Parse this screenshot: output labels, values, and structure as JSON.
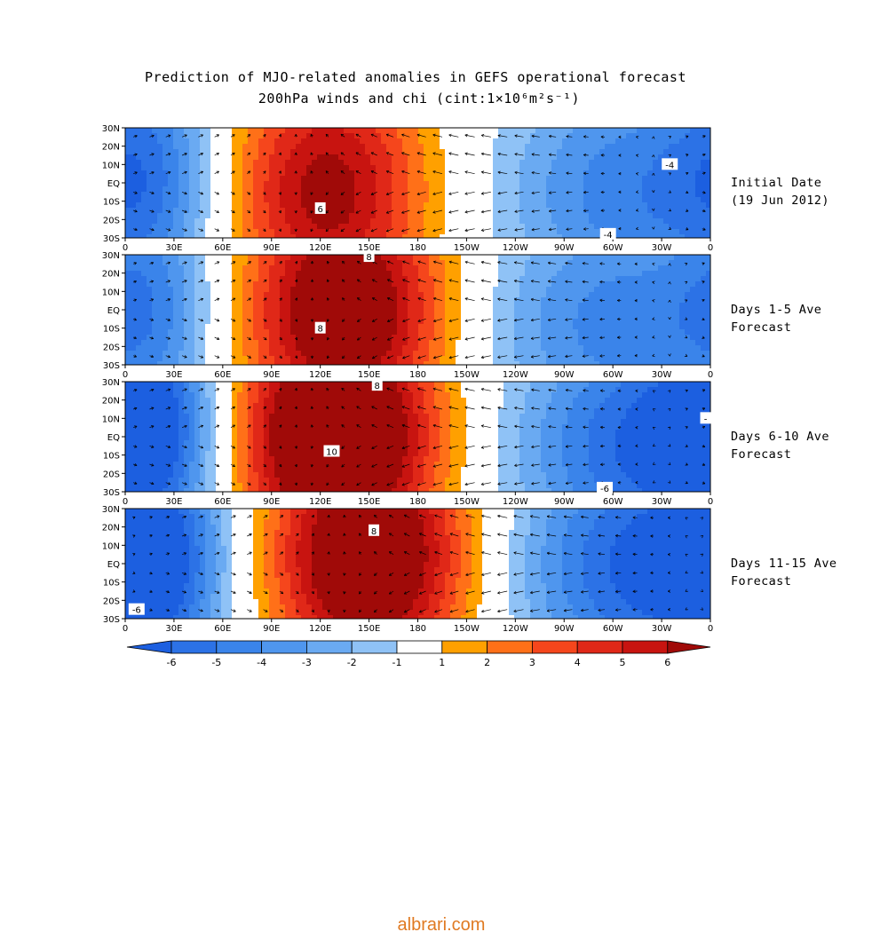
{
  "title": {
    "line1": "Prediction of MJO-related anomalies in GEFS operational forecast",
    "line2": "200hPa winds and chi (cint:1×10⁶m²s⁻¹)"
  },
  "panels": [
    {
      "label_line1": "Initial Date",
      "label_line2": "(19 Jun 2012)",
      "center_lon": 125,
      "center_lat": -5,
      "peak": 6.6,
      "west_lon": 15,
      "west_lat": 5,
      "west_peak": -3.8,
      "east_lon": 310,
      "east_lat": -5,
      "east_peak": -4.6,
      "contour_labels": [
        {
          "text": "6",
          "lon": 120,
          "lat": -14
        },
        {
          "text": "-4",
          "lon": 335,
          "lat": 10
        },
        {
          "text": "-4",
          "lon": 297,
          "lat": -28
        }
      ]
    },
    {
      "label_line1": "Days 1-5 Ave",
      "label_line2": "Forecast",
      "center_lon": 135,
      "center_lat": 0,
      "peak": 8.4,
      "west_lon": 15,
      "west_lat": 5,
      "west_peak": -3.6,
      "east_lon": 300,
      "east_lat": -8,
      "east_peak": -4.4,
      "contour_labels": [
        {
          "text": "8",
          "lon": 120,
          "lat": -10
        },
        {
          "text": "8",
          "lon": 150,
          "lat": 29
        }
      ]
    },
    {
      "label_line1": "Days 6-10 Ave",
      "label_line2": "Forecast",
      "center_lon": 130,
      "center_lat": 0,
      "peak": 10.5,
      "west_lon": 15,
      "west_lat": 10,
      "west_peak": -5.2,
      "east_lon": 320,
      "east_lat": -5,
      "east_peak": -6.2,
      "contour_labels": [
        {
          "text": "10",
          "lon": 127,
          "lat": -8
        },
        {
          "text": "8",
          "lon": 155,
          "lat": 28
        },
        {
          "text": "-",
          "lon": 357,
          "lat": 10
        },
        {
          "text": "-6",
          "lon": 295,
          "lat": -28
        }
      ]
    },
    {
      "label_line1": "Days 11-15 Ave",
      "label_line2": "Forecast",
      "center_lon": 150,
      "center_lat": 5,
      "peak": 9.0,
      "west_lon": 20,
      "west_lat": 5,
      "west_peak": -5.0,
      "east_lon": 320,
      "east_lat": 0,
      "east_peak": -6.5,
      "contour_labels": [
        {
          "text": "8",
          "lon": 153,
          "lat": 18
        },
        {
          "text": "-6",
          "lon": 7,
          "lat": -25
        }
      ]
    }
  ],
  "axes": {
    "x_ticks": [
      "0",
      "30E",
      "60E",
      "90E",
      "120E",
      "150E",
      "180",
      "150W",
      "120W",
      "90W",
      "60W",
      "30W",
      "0"
    ],
    "y_ticks": [
      "30N",
      "20N",
      "10N",
      "EQ",
      "10S",
      "20S",
      "30S"
    ],
    "lon_range": [
      0,
      360
    ],
    "lat_range": [
      -30,
      30
    ]
  },
  "colorbar": {
    "levels": [
      -6,
      -5,
      -4,
      -3,
      -2,
      -1,
      1,
      2,
      3,
      4,
      5,
      6
    ],
    "labels": [
      "-6",
      "-5",
      "-4",
      "-3",
      "-2",
      "-1",
      "1",
      "2",
      "3",
      "4",
      "5",
      "6"
    ],
    "colors": [
      "#1c5fe0",
      "#2c72e6",
      "#3a84ea",
      "#4f96ee",
      "#6aaaf2",
      "#8fc2f6",
      "#ffffff",
      "#ffa000",
      "#ff7018",
      "#f5461c",
      "#e02818",
      "#c81410",
      "#a00a08"
    ]
  },
  "watermark": "albrari.com"
}
